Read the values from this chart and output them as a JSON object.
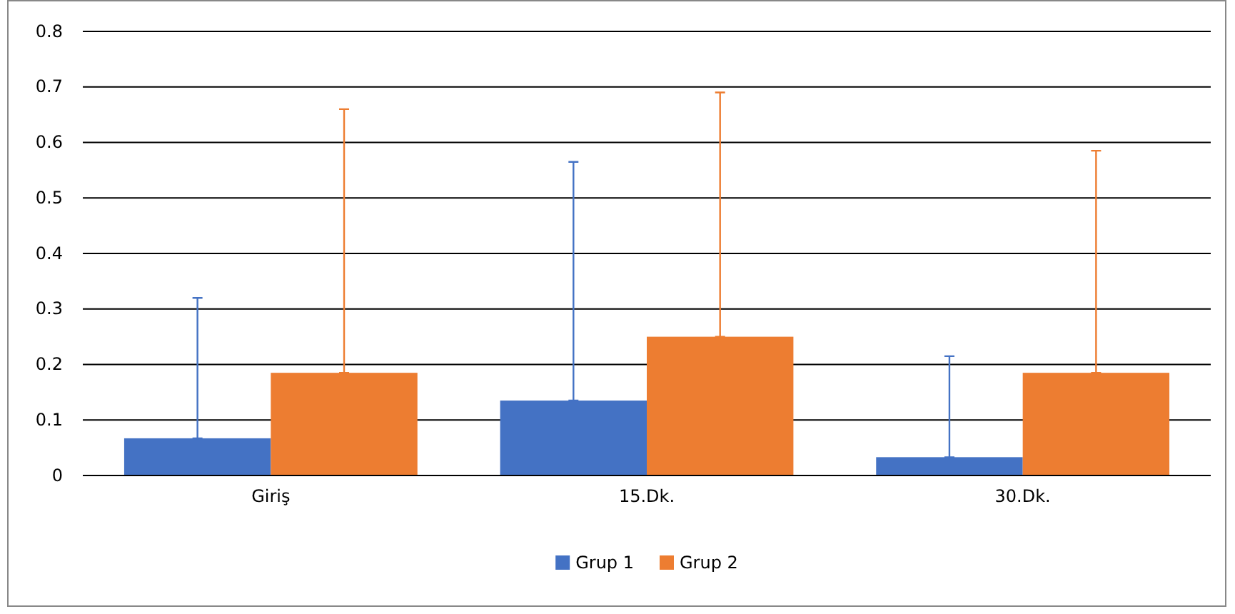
{
  "chart_data": {
    "type": "bar",
    "categories": [
      "Giriş",
      "15.Dk.",
      "30.Dk."
    ],
    "series": [
      {
        "name": "Grup 1",
        "color": "#4472c4",
        "values": [
          0.067,
          0.135,
          0.033
        ],
        "errors": [
          [
            0.067,
            0.32
          ],
          [
            0.135,
            0.565
          ],
          [
            0.033,
            0.215
          ]
        ]
      },
      {
        "name": "Grup 2",
        "color": "#ed7d31",
        "values": [
          0.185,
          0.25,
          0.185
        ],
        "errors": [
          [
            0.185,
            0.66
          ],
          [
            0.25,
            0.69
          ],
          [
            0.185,
            0.585
          ]
        ]
      }
    ],
    "ylim": [
      0,
      0.8
    ],
    "yticks": [
      0,
      0.1,
      0.2,
      0.3,
      0.4,
      0.5,
      0.6,
      0.7,
      0.8
    ],
    "grid": "y",
    "legend": "bottom"
  }
}
